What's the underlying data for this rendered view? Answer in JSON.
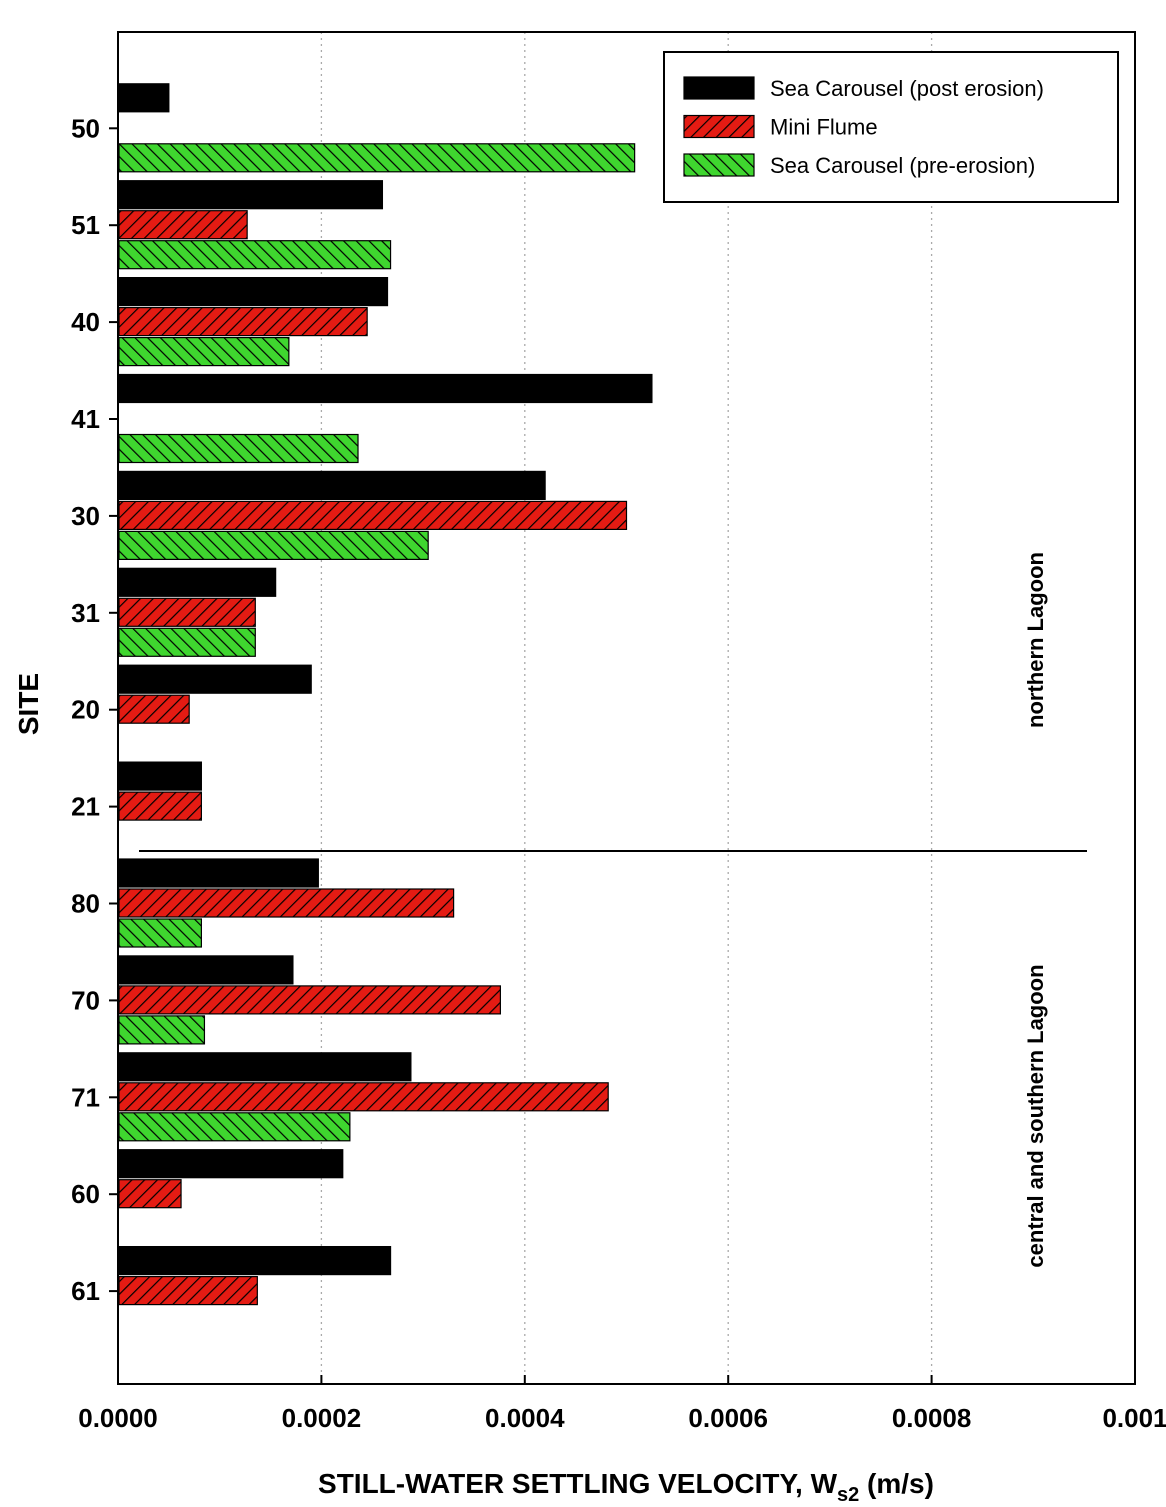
{
  "chart_data": {
    "type": "bar",
    "orientation": "horizontal",
    "title": "",
    "xlabel": "STILL-WATER SETTLING VELOCITY, W",
    "xlabel_subscript": "s2",
    "xlabel_unit": " (m/s)",
    "ylabel": "SITE",
    "xlim": [
      0,
      0.001
    ],
    "x_ticks": [
      "0.0000",
      "0.0002",
      "0.0004",
      "0.0006",
      "0.0008",
      "0.001"
    ],
    "x_tick_values": [
      0,
      0.0002,
      0.0004,
      0.0006,
      0.0008,
      0.001
    ],
    "x_grid": "dotted",
    "categories": [
      "50",
      "51",
      "40",
      "41",
      "30",
      "31",
      "20",
      "21",
      "80",
      "70",
      "71",
      "60",
      "61"
    ],
    "series": [
      {
        "name": "Sea Carousel (post erosion)",
        "color": "#000000",
        "pattern": "solid",
        "values": [
          5e-05,
          0.00026,
          0.000265,
          0.000525,
          0.00042,
          0.000155,
          0.00019,
          8.2e-05,
          0.000197,
          0.000172,
          0.000288,
          0.000221,
          0.000268
        ]
      },
      {
        "name": "Mini Flume",
        "color": "#e41b13",
        "pattern": "hatch-forward",
        "values": [
          null,
          0.000127,
          0.000245,
          null,
          0.0005,
          0.000135,
          7e-05,
          8.2e-05,
          0.00033,
          0.000376,
          0.000482,
          6.2e-05,
          0.000137
        ]
      },
      {
        "name": "Sea Carousel (pre-erosion)",
        "color": "#3fd62f",
        "pattern": "hatch-backward",
        "values": [
          0.000508,
          0.000268,
          0.000168,
          0.000236,
          0.000305,
          0.000135,
          null,
          null,
          8.2e-05,
          8.5e-05,
          0.000228,
          null,
          null
        ]
      }
    ],
    "legend": {
      "placement": "top-right"
    },
    "region_labels": [
      "northern Lagoon",
      "central and southern Lagoon"
    ],
    "region_divider_after_category": "21"
  }
}
